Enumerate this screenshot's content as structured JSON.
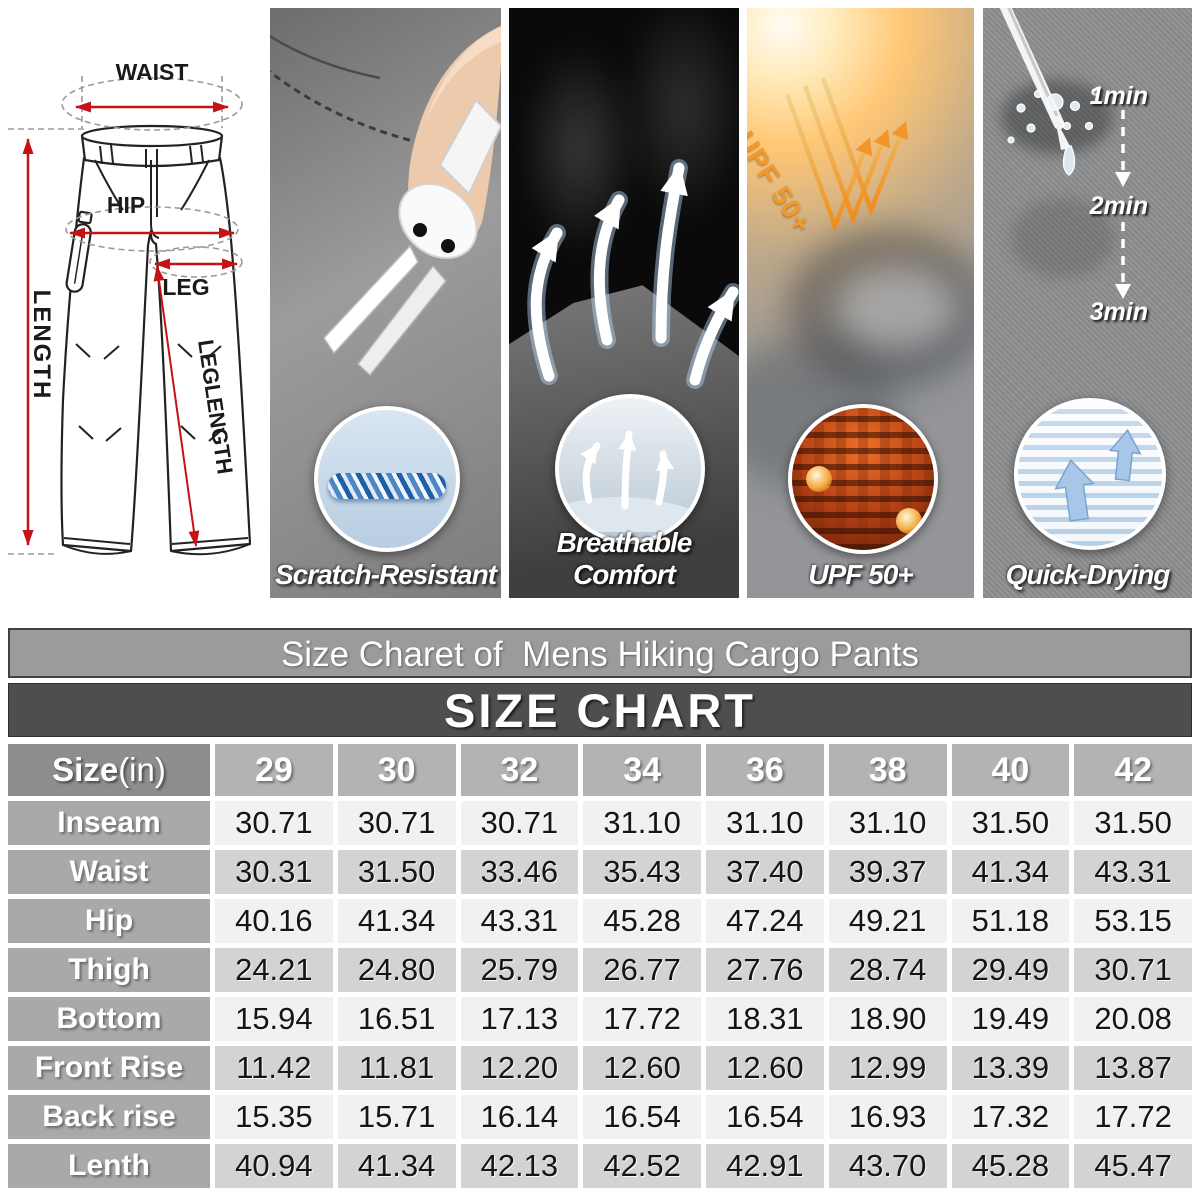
{
  "diagram": {
    "waist_label": "WAIST",
    "hip_label": "HIP",
    "leg_label": "LEG",
    "length_label": "LENGTH",
    "leglength_label": "LEGLENGTH",
    "arrow_color": "#c41219"
  },
  "features": {
    "scratch": {
      "caption": "Scratch-Resistant"
    },
    "breathable": {
      "caption": "Breathable Comfort"
    },
    "upf": {
      "caption": "UPF 50+",
      "overlay_label": "UPF 50+"
    },
    "quickdry": {
      "caption": "Quick-Drying",
      "time1": "1min",
      "time2": "2min",
      "time3": "3min"
    }
  },
  "size_chart": {
    "subtitle": "Size Charet of  Mens Hiking Cargo Pants",
    "title": "SIZE CHART",
    "corner_label_bold": "Size",
    "corner_label_unit": " (in)",
    "sizes": [
      "29",
      "30",
      "32",
      "34",
      "36",
      "38",
      "40",
      "42"
    ],
    "rows": [
      {
        "label": "Inseam",
        "values": [
          "30.71",
          "30.71",
          "30.71",
          "31.10",
          "31.10",
          "31.10",
          "31.50",
          "31.50"
        ]
      },
      {
        "label": "Waist",
        "values": [
          "30.31",
          "31.50",
          "33.46",
          "35.43",
          "37.40",
          "39.37",
          "41.34",
          "43.31"
        ]
      },
      {
        "label": "Hip",
        "values": [
          "40.16",
          "41.34",
          "43.31",
          "45.28",
          "47.24",
          "49.21",
          "51.18",
          "53.15"
        ]
      },
      {
        "label": "Thigh",
        "values": [
          "24.21",
          "24.80",
          "25.79",
          "26.77",
          "27.76",
          "28.74",
          "29.49",
          "30.71"
        ]
      },
      {
        "label": "Bottom",
        "values": [
          "15.94",
          "16.51",
          "17.13",
          "17.72",
          "18.31",
          "18.90",
          "19.49",
          "20.08"
        ]
      },
      {
        "label": "Front Rise",
        "values": [
          "11.42",
          "11.81",
          "12.20",
          "12.60",
          "12.60",
          "12.99",
          "13.39",
          "13.87"
        ]
      },
      {
        "label": "Back rise",
        "values": [
          "15.35",
          "15.71",
          "16.14",
          "16.54",
          "16.54",
          "16.93",
          "17.32",
          "17.72"
        ]
      },
      {
        "label": "Lenth",
        "values": [
          "40.94",
          "41.34",
          "42.13",
          "42.52",
          "42.91",
          "43.70",
          "45.28",
          "45.47"
        ]
      }
    ],
    "colors": {
      "subtitle_bg": "#9b9b9b",
      "banner_bg": "#4e4e4e",
      "header_cell_bg": "#b3b3b3",
      "corner_cell_bg": "#8d8d8d",
      "label_cell_bg": "#a9a9a9",
      "row_light_bg": "#f1f1f1",
      "row_shade_bg": "#d3d3d3",
      "accent_red": "#c41219"
    }
  },
  "chart_data": {
    "type": "table",
    "title": "SIZE CHART",
    "subtitle": "Size Charet of  Mens Hiking Cargo Pants",
    "columns": [
      "Size (in)",
      "29",
      "30",
      "32",
      "34",
      "36",
      "38",
      "40",
      "42"
    ],
    "rows": [
      [
        "Inseam",
        30.71,
        30.71,
        30.71,
        31.1,
        31.1,
        31.1,
        31.5,
        31.5
      ],
      [
        "Waist",
        30.31,
        31.5,
        33.46,
        35.43,
        37.4,
        39.37,
        41.34,
        43.31
      ],
      [
        "Hip",
        40.16,
        41.34,
        43.31,
        45.28,
        47.24,
        49.21,
        51.18,
        53.15
      ],
      [
        "Thigh",
        24.21,
        24.8,
        25.79,
        26.77,
        27.76,
        28.74,
        29.49,
        30.71
      ],
      [
        "Bottom",
        15.94,
        16.51,
        17.13,
        17.72,
        18.31,
        18.9,
        19.49,
        20.08
      ],
      [
        "Front Rise",
        11.42,
        11.81,
        12.2,
        12.6,
        12.6,
        12.99,
        13.39,
        13.87
      ],
      [
        "Back rise",
        15.35,
        15.71,
        16.14,
        16.54,
        16.54,
        16.93,
        17.32,
        17.72
      ],
      [
        "Lenth",
        40.94,
        41.34,
        42.13,
        42.52,
        42.91,
        43.7,
        45.28,
        45.47
      ]
    ]
  }
}
